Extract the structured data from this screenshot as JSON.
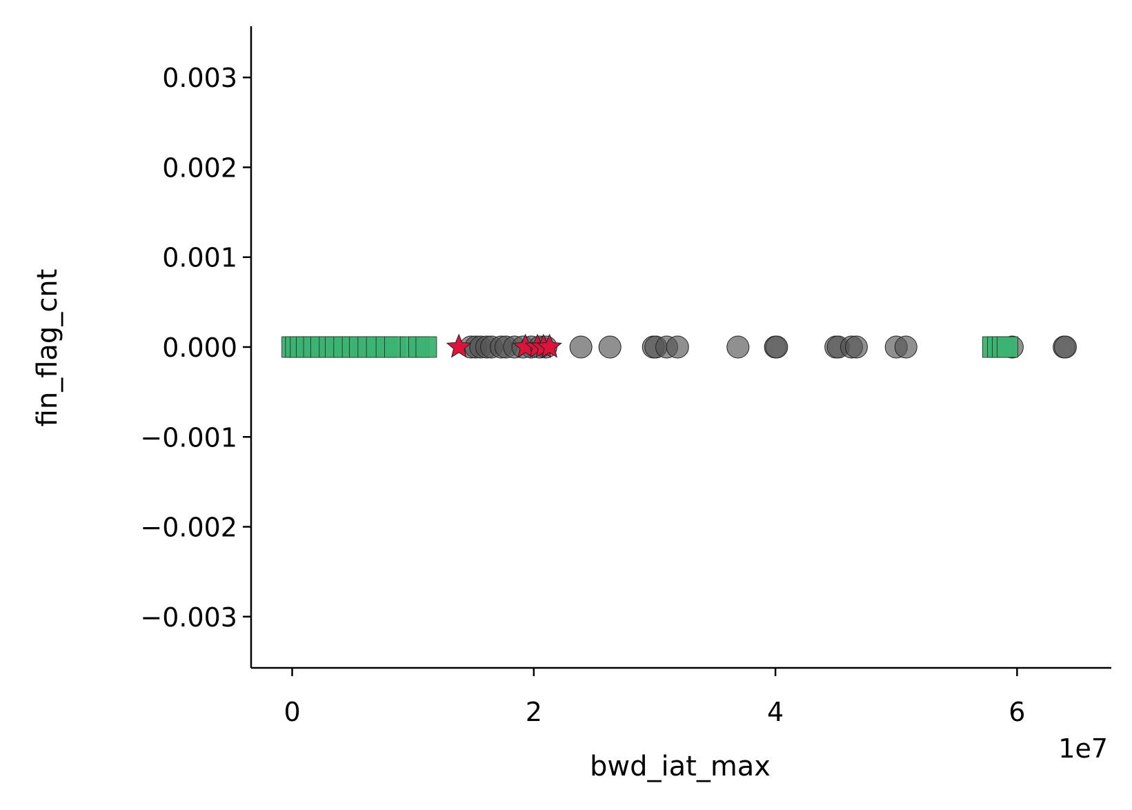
{
  "chart_data": {
    "type": "scatter",
    "title": "",
    "xlabel": "bwd_iat_max",
    "ylabel": "fin_flag_cnt",
    "x_offset_text": "1e7",
    "xlim": [
      -3400000,
      67800000
    ],
    "ylim": [
      -0.00357,
      0.00357
    ],
    "x_ticks": [
      0,
      20000000,
      40000000,
      60000000
    ],
    "x_tick_labels": [
      "0",
      "2",
      "4",
      "6"
    ],
    "y_ticks": [
      0.003,
      0.002,
      0.001,
      0.0,
      -0.001,
      -0.002,
      -0.003
    ],
    "y_tick_labels": [
      "0.003",
      "0.002",
      "0.001",
      "0.000",
      "−0.001",
      "−0.002",
      "−0.003"
    ],
    "grid": false,
    "legend": "none",
    "series": [
      {
        "marker": "circle",
        "color": "#555555",
        "points": [
          {
            "x": 14800000,
            "y": 0
          },
          {
            "x": 15200000,
            "y": 0
          },
          {
            "x": 15600000,
            "y": 0
          },
          {
            "x": 16100000,
            "y": 0
          },
          {
            "x": 16500000,
            "y": 0
          },
          {
            "x": 17300000,
            "y": 0
          },
          {
            "x": 17700000,
            "y": 0
          },
          {
            "x": 18400000,
            "y": 0
          },
          {
            "x": 19100000,
            "y": 0
          },
          {
            "x": 19800000,
            "y": 0
          },
          {
            "x": 20500000,
            "y": 0
          },
          {
            "x": 21000000,
            "y": 0
          },
          {
            "x": 23900000,
            "y": 0
          },
          {
            "x": 26300000,
            "y": 0
          },
          {
            "x": 29900000,
            "y": 0
          },
          {
            "x": 30100000,
            "y": 0
          },
          {
            "x": 31000000,
            "y": 0
          },
          {
            "x": 31900000,
            "y": 0
          },
          {
            "x": 36900000,
            "y": 0
          },
          {
            "x": 40000000,
            "y": 0
          },
          {
            "x": 40100000,
            "y": 0
          },
          {
            "x": 45000000,
            "y": 0
          },
          {
            "x": 45200000,
            "y": 0
          },
          {
            "x": 46300000,
            "y": 0
          },
          {
            "x": 46700000,
            "y": 0
          },
          {
            "x": 50000000,
            "y": 0
          },
          {
            "x": 50800000,
            "y": 0
          },
          {
            "x": 59600000,
            "y": 0
          },
          {
            "x": 63900000,
            "y": 0
          },
          {
            "x": 64000000,
            "y": 0
          }
        ]
      },
      {
        "marker": "square",
        "color": "#3cb371",
        "points": [
          {
            "x": 0,
            "y": 0
          },
          {
            "x": 300000,
            "y": 0
          },
          {
            "x": 700000,
            "y": 0
          },
          {
            "x": 1200000,
            "y": 0
          },
          {
            "x": 1800000,
            "y": 0
          },
          {
            "x": 2400000,
            "y": 0
          },
          {
            "x": 3100000,
            "y": 0
          },
          {
            "x": 3600000,
            "y": 0
          },
          {
            "x": 4300000,
            "y": 0
          },
          {
            "x": 5000000,
            "y": 0
          },
          {
            "x": 5600000,
            "y": 0
          },
          {
            "x": 6300000,
            "y": 0
          },
          {
            "x": 7000000,
            "y": 0
          },
          {
            "x": 7800000,
            "y": 0
          },
          {
            "x": 8500000,
            "y": 0
          },
          {
            "x": 9800000,
            "y": 0
          },
          {
            "x": 10500000,
            "y": 0
          },
          {
            "x": 11100000,
            "y": 0
          },
          {
            "x": 58000000,
            "y": 0
          },
          {
            "x": 58400000,
            "y": 0
          },
          {
            "x": 58800000,
            "y": 0
          },
          {
            "x": 59200000,
            "y": 0
          }
        ]
      },
      {
        "marker": "star",
        "color": "#dc143c",
        "points": [
          {
            "x": 13800000,
            "y": 0
          },
          {
            "x": 19300000,
            "y": 0
          },
          {
            "x": 20300000,
            "y": 0
          },
          {
            "x": 20800000,
            "y": 0
          },
          {
            "x": 21300000,
            "y": 0
          }
        ]
      }
    ]
  }
}
